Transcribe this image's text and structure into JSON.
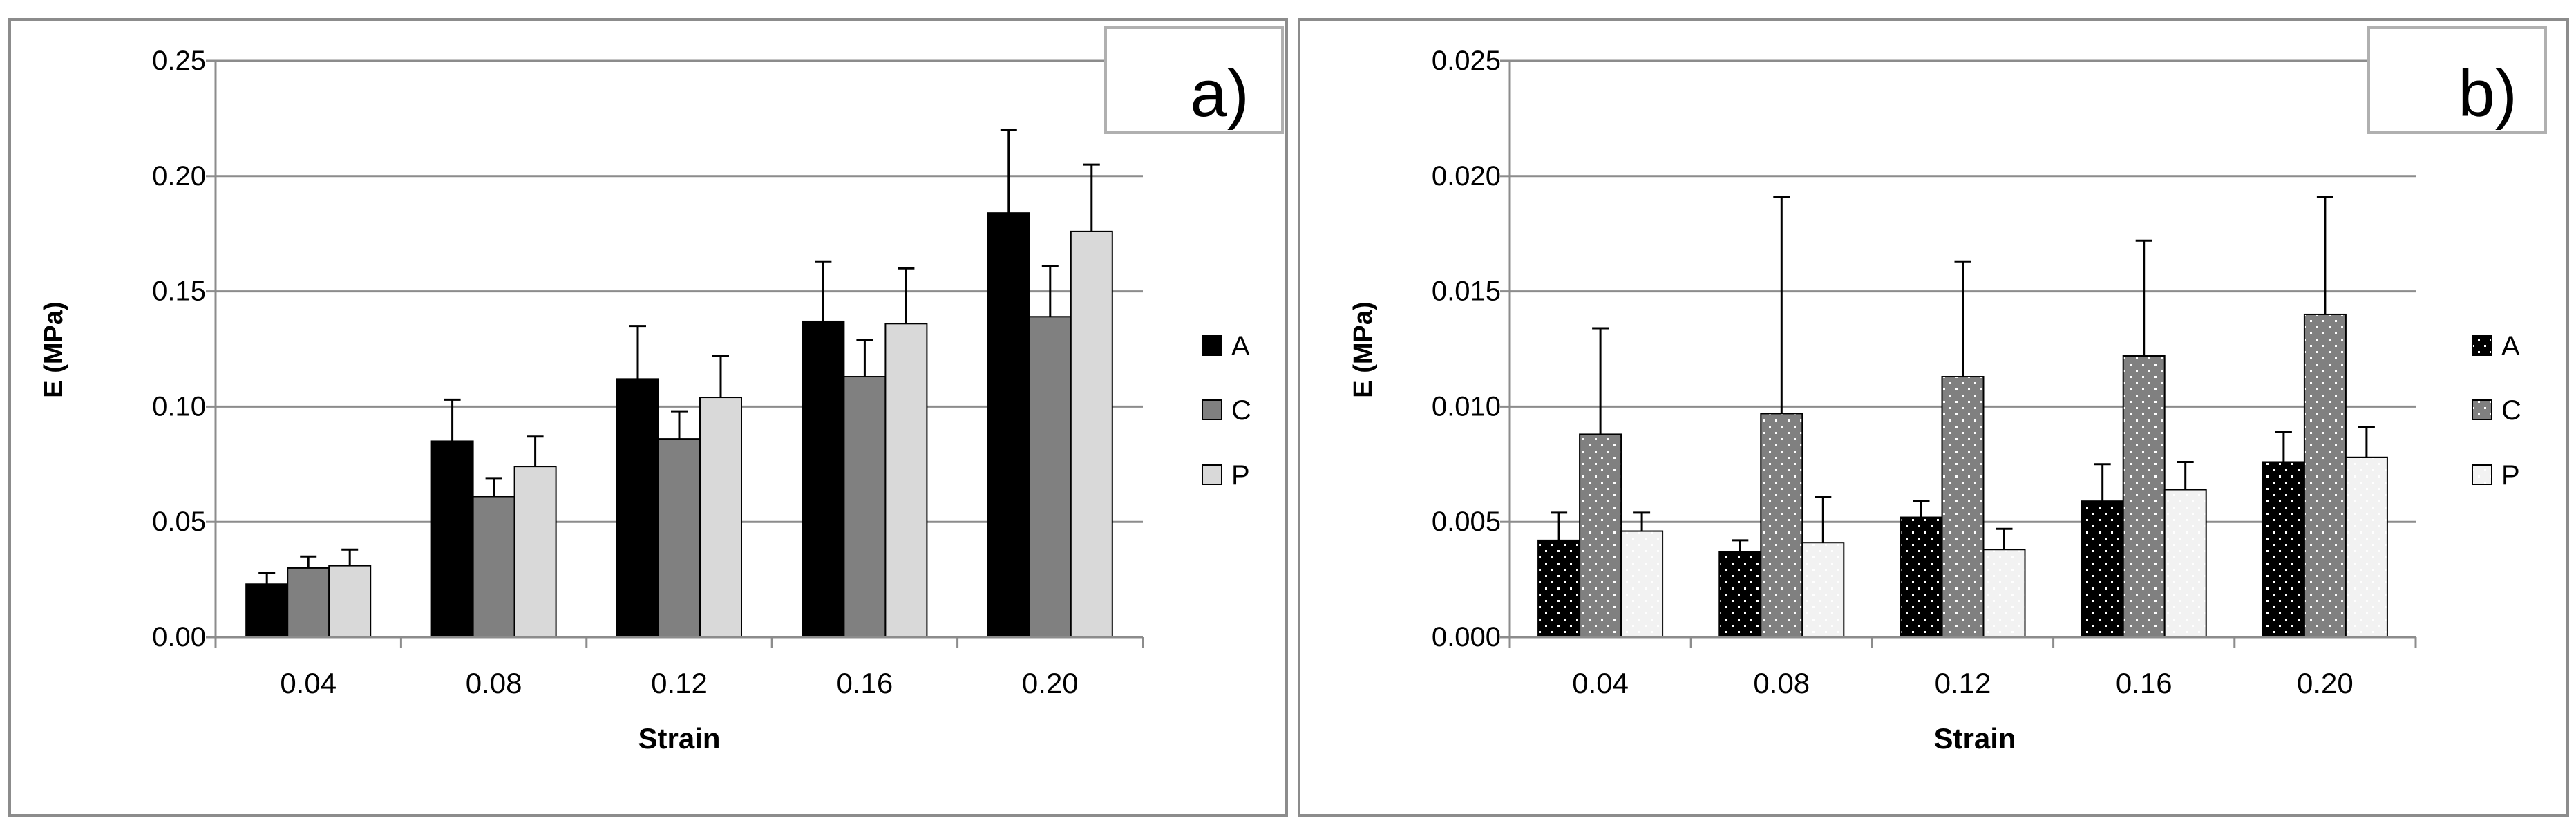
{
  "chart_data": [
    {
      "type": "bar",
      "panel_label": "a)",
      "ylabel": "E (MPa)",
      "xlabel": "Strain",
      "ylim": [
        0,
        0.25
      ],
      "yticks": [
        "0.00",
        "0.05",
        "0.10",
        "0.15",
        "0.20",
        "0.25"
      ],
      "categories": [
        "0.04",
        "0.08",
        "0.12",
        "0.16",
        "0.20"
      ],
      "grid": true,
      "legend_position": "right",
      "series": [
        {
          "name": "A",
          "color": "#000000",
          "pattern": "solid",
          "values": [
            0.023,
            0.085,
            0.112,
            0.137,
            0.184
          ],
          "errors": [
            0.005,
            0.018,
            0.023,
            0.026,
            0.036
          ]
        },
        {
          "name": "C",
          "color": "#808080",
          "pattern": "solid",
          "values": [
            0.03,
            0.061,
            0.086,
            0.113,
            0.139
          ],
          "errors": [
            0.005,
            0.008,
            0.012,
            0.016,
            0.022
          ]
        },
        {
          "name": "P",
          "color": "#d9d9d9",
          "pattern": "solid",
          "values": [
            0.031,
            0.074,
            0.104,
            0.136,
            0.176
          ],
          "errors": [
            0.007,
            0.013,
            0.018,
            0.024,
            0.029
          ]
        }
      ]
    },
    {
      "type": "bar",
      "panel_label": "b)",
      "ylabel": "E (MPa)",
      "xlabel": "Strain",
      "ylim": [
        0,
        0.025
      ],
      "yticks": [
        "0.000",
        "0.005",
        "0.010",
        "0.015",
        "0.020",
        "0.025"
      ],
      "categories": [
        "0.04",
        "0.08",
        "0.12",
        "0.16",
        "0.20"
      ],
      "grid": true,
      "legend_position": "right",
      "series": [
        {
          "name": "A",
          "color": "#000000",
          "pattern": "dots-dark",
          "values": [
            0.0042,
            0.0037,
            0.0052,
            0.0059,
            0.0076
          ],
          "errors": [
            0.0012,
            0.0005,
            0.0007,
            0.0016,
            0.0013
          ]
        },
        {
          "name": "C",
          "color": "#808080",
          "pattern": "dots-gray",
          "values": [
            0.0088,
            0.0097,
            0.0113,
            0.0122,
            0.014
          ],
          "errors": [
            0.0046,
            0.0094,
            0.005,
            0.005,
            0.0051
          ]
        },
        {
          "name": "P",
          "color": "#f2f2f2",
          "pattern": "dots-light",
          "values": [
            0.0046,
            0.0041,
            0.0038,
            0.0064,
            0.0078
          ],
          "errors": [
            0.0008,
            0.002,
            0.0009,
            0.0012,
            0.0013
          ]
        }
      ]
    }
  ]
}
